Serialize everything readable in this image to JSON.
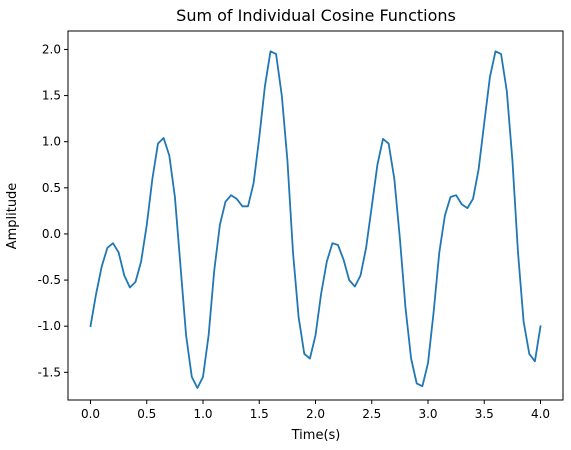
{
  "chart_data": {
    "type": "line",
    "title": "Sum of Individual Cosine Functions",
    "xlabel": "Time(s)",
    "ylabel": "Amplitude",
    "xlim": [
      -0.2,
      4.2
    ],
    "ylim": [
      -1.8,
      2.2
    ],
    "xticks": [
      "0.0",
      "0.5",
      "1.0",
      "1.5",
      "2.0",
      "2.5",
      "3.0",
      "3.5",
      "4.0"
    ],
    "yticks": [
      "-1.5",
      "-1.0",
      "-0.5",
      "0.0",
      "0.5",
      "1.0",
      "1.5",
      "2.0"
    ],
    "grid": false,
    "series": [
      {
        "name": "",
        "color": "#1f77b4",
        "x": [
          0.0,
          0.05,
          0.1,
          0.15,
          0.2,
          0.25,
          0.3,
          0.35,
          0.4,
          0.45,
          0.5,
          0.55,
          0.6,
          0.65,
          0.7,
          0.75,
          0.8,
          0.85,
          0.9,
          0.95,
          1.0,
          1.05,
          1.1,
          1.15,
          1.2,
          1.25,
          1.3,
          1.35,
          1.4,
          1.45,
          1.5,
          1.55,
          1.6,
          1.65,
          1.7,
          1.75,
          1.8,
          1.85,
          1.9,
          1.95,
          2.0,
          2.05,
          2.1,
          2.15,
          2.2,
          2.25,
          2.3,
          2.35,
          2.4,
          2.45,
          2.5,
          2.55,
          2.6,
          2.65,
          2.7,
          2.75,
          2.8,
          2.85,
          2.9,
          2.95,
          3.0,
          3.05,
          3.1,
          3.15,
          3.2,
          3.25,
          3.3,
          3.35,
          3.4,
          3.45,
          3.5,
          3.55,
          3.6,
          3.65,
          3.7,
          3.75,
          3.8,
          3.85,
          3.9,
          3.95,
          4.0
        ],
        "values": [
          -1.0,
          -0.65,
          -0.35,
          -0.15,
          -0.1,
          -0.2,
          -0.45,
          -0.58,
          -0.52,
          -0.3,
          0.1,
          0.6,
          0.98,
          1.04,
          0.85,
          0.4,
          -0.35,
          -1.1,
          -1.55,
          -1.67,
          -1.55,
          -1.1,
          -0.4,
          0.1,
          0.35,
          0.42,
          0.38,
          0.3,
          0.3,
          0.55,
          1.05,
          1.6,
          1.98,
          1.95,
          1.5,
          0.8,
          -0.2,
          -0.9,
          -1.3,
          -1.35,
          -1.1,
          -0.65,
          -0.3,
          -0.1,
          -0.12,
          -0.28,
          -0.5,
          -0.57,
          -0.45,
          -0.15,
          0.3,
          0.75,
          1.03,
          0.98,
          0.6,
          -0.05,
          -0.8,
          -1.35,
          -1.62,
          -1.65,
          -1.4,
          -0.85,
          -0.2,
          0.2,
          0.4,
          0.42,
          0.32,
          0.28,
          0.38,
          0.7,
          1.2,
          1.7,
          1.98,
          1.95,
          1.55,
          0.8,
          -0.2,
          -0.95,
          -1.3,
          -1.38,
          -1.0
        ]
      }
    ]
  }
}
